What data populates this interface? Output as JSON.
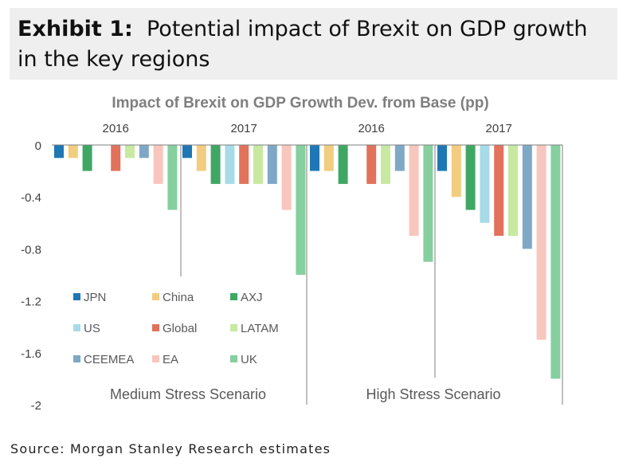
{
  "header": {
    "exhibit_label": "Exhibit 1:",
    "title": "Potential impact of Brexit on GDP growth in the key regions"
  },
  "source": "Source: Morgan Stanley Research estimates",
  "chart_data": {
    "type": "bar",
    "title": "Impact of Brexit on GDP Growth Dev. from Base (pp)",
    "ylim": [
      -2,
      0
    ],
    "yticks": [
      0,
      -0.4,
      -0.8,
      -1.2,
      -1.6,
      -2
    ],
    "ytick_labels": [
      "0",
      "-0.4",
      "-0.8",
      "-1.2",
      "-1.6",
      "-2"
    ],
    "grid": false,
    "legend_position": "lower-left",
    "panels": [
      {
        "name": "Medium Stress Scenario",
        "groups": [
          {
            "label": "2016",
            "values": [
              -0.1,
              -0.1,
              -0.2,
              0,
              -0.2,
              -0.1,
              -0.1,
              -0.3,
              -0.5
            ]
          },
          {
            "label": "2017",
            "values": [
              -0.1,
              -0.2,
              -0.3,
              -0.3,
              -0.3,
              -0.3,
              -0.3,
              -0.5,
              -1.0
            ]
          }
        ]
      },
      {
        "name": "High Stress Scenario",
        "groups": [
          {
            "label": "2016",
            "values": [
              -0.2,
              -0.2,
              -0.3,
              0,
              -0.3,
              -0.3,
              -0.2,
              -0.7,
              -0.9
            ]
          },
          {
            "label": "2017",
            "values": [
              -0.2,
              -0.4,
              -0.5,
              -0.6,
              -0.7,
              -0.7,
              -0.8,
              -1.5,
              -1.8
            ]
          }
        ]
      }
    ],
    "series": [
      {
        "name": "JPN",
        "color": "#1f77b4"
      },
      {
        "name": "China",
        "color": "#f2cd7f"
      },
      {
        "name": "AXJ",
        "color": "#3fa764"
      },
      {
        "name": "US",
        "color": "#a8dbe8"
      },
      {
        "name": "Global",
        "color": "#e2725b"
      },
      {
        "name": "LATAM",
        "color": "#c7e9a0"
      },
      {
        "name": "CEEMEA",
        "color": "#7fa8c6"
      },
      {
        "name": "EA",
        "color": "#f7c6bd"
      },
      {
        "name": "UK",
        "color": "#86cf9e"
      }
    ]
  }
}
